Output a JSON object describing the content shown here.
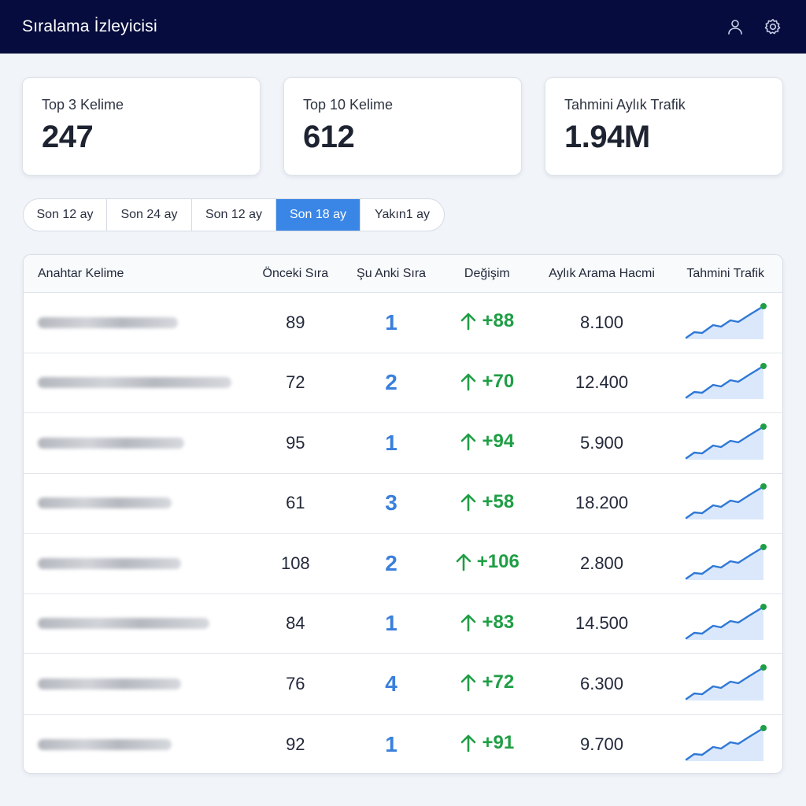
{
  "header": {
    "title": "Sıralama İzleyicisi",
    "icons": [
      "user-icon",
      "gear-icon"
    ]
  },
  "stats": [
    {
      "label": "Top 3 Kelime",
      "value": "247"
    },
    {
      "label": "Top 10 Kelime",
      "value": "612"
    },
    {
      "label": "Tahmini Aylık Trafik",
      "value": "1.94M"
    }
  ],
  "range_tabs": [
    {
      "label": "Son 12 ay",
      "active": false
    },
    {
      "label": "Son 24 ay",
      "active": false
    },
    {
      "label": "Son 12 ay",
      "active": false
    },
    {
      "label": "Son 18 ay",
      "active": true
    },
    {
      "label": "Yakın1 ay",
      "active": false
    }
  ],
  "table": {
    "columns": [
      "Anahtar Kelime",
      "Önceki Sıra",
      "Şu Anki Sıra",
      "Değişim",
      "Aylık Arama Hacmi",
      "Tahmini Trafik"
    ],
    "rows": [
      {
        "prev": "89",
        "current": "1",
        "change": "+88",
        "volume": "8.100"
      },
      {
        "prev": "72",
        "current": "2",
        "change": "+70",
        "volume": "12.400"
      },
      {
        "prev": "95",
        "current": "1",
        "change": "+94",
        "volume": "5.900"
      },
      {
        "prev": "61",
        "current": "3",
        "change": "+58",
        "volume": "18.200"
      },
      {
        "prev": "108",
        "current": "2",
        "change": "+106",
        "volume": "2.800"
      },
      {
        "prev": "84",
        "current": "1",
        "change": "+83",
        "volume": "14.500"
      },
      {
        "prev": "76",
        "current": "4",
        "change": "+72",
        "volume": "6.300"
      },
      {
        "prev": "92",
        "current": "1",
        "change": "+91",
        "volume": "9.700"
      }
    ]
  },
  "colors": {
    "header_bg": "#060c3d",
    "accent": "#3a86e6",
    "positive": "#1f9e45",
    "rank": "#3a7fdc",
    "spark_line": "#2f78d6",
    "spark_dot": "#1f9e45"
  }
}
